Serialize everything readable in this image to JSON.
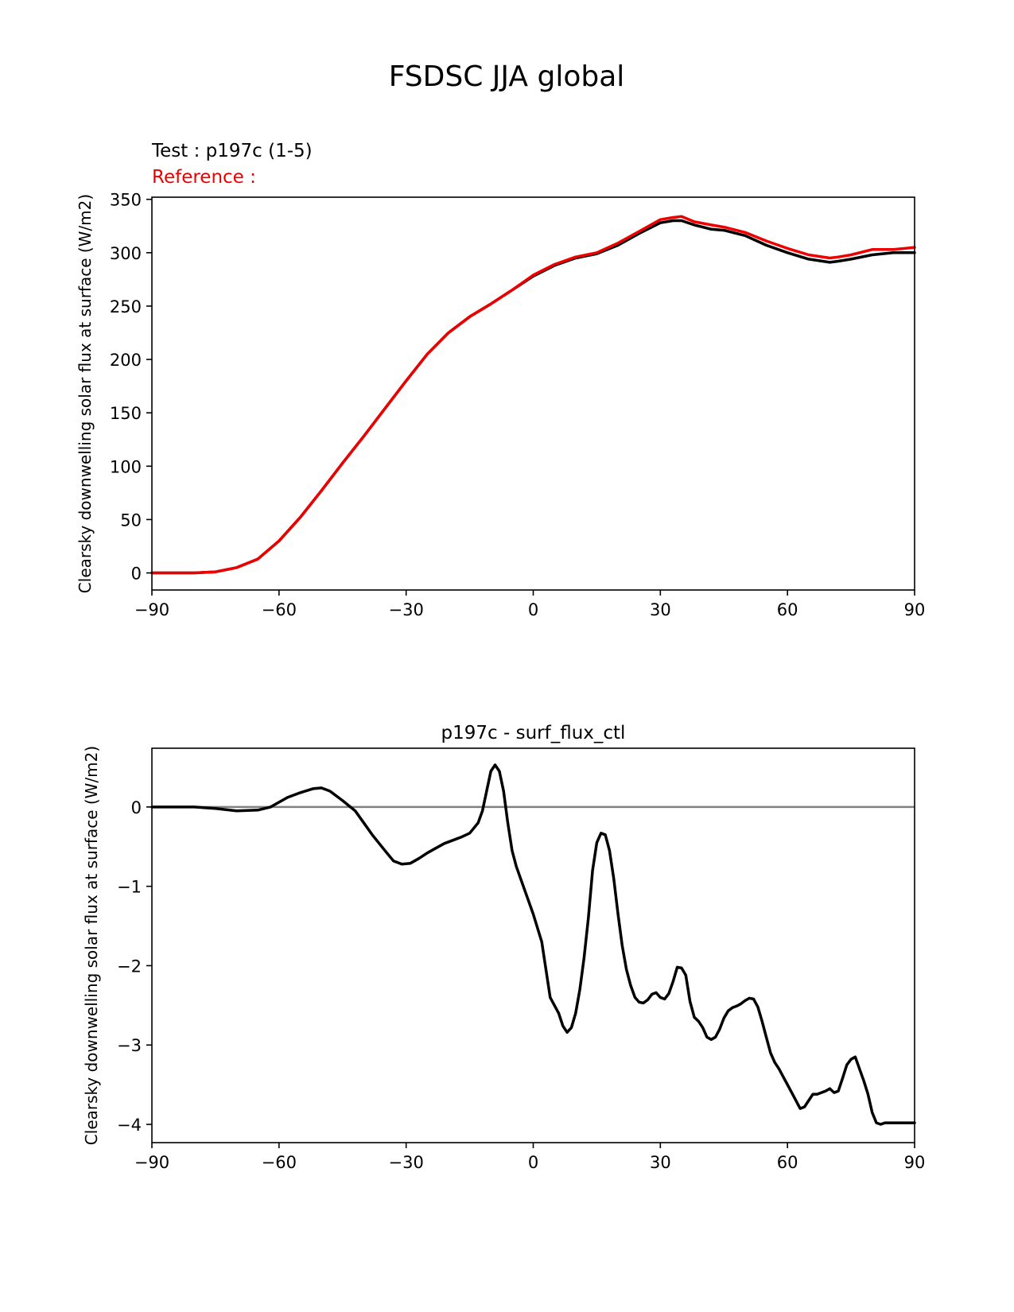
{
  "figure": {
    "suptitle": "FSDSC JJA global",
    "test_label": "Test : p197c (1-5)",
    "reference_label": "Reference :",
    "colors": {
      "test": "#000000",
      "reference": "#ee0000",
      "zero_line": "#808080"
    }
  },
  "chart_data": [
    {
      "type": "line",
      "title": "",
      "xlabel": "",
      "ylabel": "Clearsky downwelling solar flux at surface (W/m2)",
      "xlim": [
        -90,
        90
      ],
      "ylim": [
        -16,
        352
      ],
      "xticks": [
        -90,
        -60,
        -30,
        0,
        30,
        60,
        90
      ],
      "xtick_labels": [
        "−90",
        "−60",
        "−30",
        "0",
        "30",
        "60",
        "90"
      ],
      "yticks": [
        0,
        50,
        100,
        150,
        200,
        250,
        300,
        350
      ],
      "ytick_labels": [
        "0",
        "50",
        "100",
        "150",
        "200",
        "250",
        "300",
        "350"
      ],
      "series": [
        {
          "name": "Test : p197c (1-5)",
          "color": "#000000",
          "x": [
            -90,
            -85,
            -80,
            -75,
            -70,
            -65,
            -60,
            -55,
            -50,
            -45,
            -40,
            -35,
            -30,
            -25,
            -20,
            -15,
            -10,
            -5,
            0,
            5,
            10,
            15,
            20,
            25,
            30,
            33,
            35,
            38,
            42,
            45,
            50,
            55,
            60,
            65,
            70,
            72,
            75,
            80,
            85,
            90
          ],
          "y": [
            0,
            0,
            0,
            1,
            5,
            13,
            30,
            52,
            77,
            103,
            128,
            154,
            180,
            205,
            225,
            240,
            252,
            265,
            278,
            288,
            295,
            299,
            307,
            318,
            328,
            330,
            330,
            326,
            322,
            321,
            316,
            307,
            300,
            294,
            291,
            292,
            294,
            298,
            300,
            300
          ]
        },
        {
          "name": "Reference :",
          "color": "#ee0000",
          "x": [
            -90,
            -85,
            -80,
            -75,
            -70,
            -65,
            -60,
            -55,
            -50,
            -45,
            -40,
            -35,
            -30,
            -25,
            -20,
            -15,
            -10,
            -5,
            0,
            5,
            10,
            15,
            20,
            25,
            30,
            33,
            35,
            38,
            42,
            45,
            50,
            55,
            60,
            65,
            70,
            72,
            75,
            80,
            85,
            90
          ],
          "y": [
            0,
            0,
            0,
            1,
            5,
            13,
            30,
            52,
            77,
            103,
            128,
            154,
            180,
            205,
            225,
            240,
            252,
            265,
            279,
            289,
            296,
            300,
            309,
            320,
            331,
            333,
            334,
            329,
            326,
            324,
            319,
            311,
            304,
            298,
            295,
            296,
            298,
            303,
            303,
            305
          ]
        }
      ]
    },
    {
      "type": "line",
      "title": "p197c - surf_flux_ctl",
      "xlabel": "",
      "ylabel": "Clearsky downwelling solar flux at surface (W/m2)",
      "xlim": [
        -90,
        90
      ],
      "ylim": [
        -4.23,
        0.74
      ],
      "xticks": [
        -90,
        -60,
        -30,
        0,
        30,
        60,
        90
      ],
      "xtick_labels": [
        "−90",
        "−60",
        "−30",
        "0",
        "30",
        "60",
        "90"
      ],
      "yticks": [
        0,
        -1,
        -2,
        -3,
        -4
      ],
      "ytick_labels": [
        "0",
        "−1",
        "−2",
        "−3",
        "−4"
      ],
      "zero_line": true,
      "series": [
        {
          "name": "",
          "color": "#000000",
          "x": [
            -90,
            -80,
            -75,
            -70,
            -65,
            -62,
            -58,
            -55,
            -52,
            -50,
            -48,
            -45,
            -42,
            -40,
            -38,
            -35,
            -33,
            -31,
            -29,
            -27,
            -25,
            -23,
            -21,
            -19,
            -17,
            -15,
            -13,
            -12,
            -11,
            -10,
            -9,
            -8,
            -7,
            -6,
            -5,
            -4,
            -2,
            0,
            2,
            4,
            6,
            7,
            8,
            9,
            10,
            11,
            12,
            13,
            14,
            15,
            16,
            17,
            18,
            19,
            20,
            21,
            22,
            23,
            24,
            25,
            26,
            27,
            28,
            29,
            30,
            31,
            32,
            33,
            34,
            35,
            36,
            37,
            38,
            39,
            40,
            41,
            42,
            43,
            44,
            45,
            46,
            47,
            48,
            49,
            50,
            51,
            52,
            53,
            54,
            55,
            56,
            57,
            58,
            59,
            60,
            61,
            62,
            63,
            64,
            65,
            66,
            67,
            68,
            69,
            70,
            71,
            72,
            73,
            74,
            75,
            76,
            77,
            78,
            79,
            80,
            81,
            82,
            83,
            84,
            85,
            86,
            87,
            88,
            89,
            90
          ],
          "y": [
            0,
            0,
            -0.02,
            -0.05,
            -0.04,
            0,
            0.12,
            0.18,
            0.23,
            0.24,
            0.2,
            0.08,
            -0.05,
            -0.2,
            -0.35,
            -0.55,
            -0.68,
            -0.72,
            -0.71,
            -0.65,
            -0.58,
            -0.52,
            -0.46,
            -0.42,
            -0.38,
            -0.33,
            -0.2,
            -0.05,
            0.2,
            0.45,
            0.53,
            0.45,
            0.2,
            -0.2,
            -0.55,
            -0.75,
            -1.05,
            -1.35,
            -1.7,
            -2.4,
            -2.6,
            -2.76,
            -2.84,
            -2.78,
            -2.6,
            -2.3,
            -1.9,
            -1.4,
            -0.8,
            -0.45,
            -0.33,
            -0.35,
            -0.55,
            -0.9,
            -1.35,
            -1.75,
            -2.05,
            -2.25,
            -2.4,
            -2.46,
            -2.47,
            -2.43,
            -2.36,
            -2.34,
            -2.4,
            -2.42,
            -2.35,
            -2.2,
            -2.02,
            -2.03,
            -2.12,
            -2.45,
            -2.65,
            -2.7,
            -2.78,
            -2.9,
            -2.93,
            -2.9,
            -2.8,
            -2.66,
            -2.57,
            -2.53,
            -2.51,
            -2.48,
            -2.44,
            -2.41,
            -2.42,
            -2.52,
            -2.7,
            -2.9,
            -3.1,
            -3.22,
            -3.3,
            -3.4,
            -3.5,
            -3.6,
            -3.7,
            -3.8,
            -3.78,
            -3.7,
            -3.62,
            -3.62,
            -3.6,
            -3.58,
            -3.55,
            -3.6,
            -3.58,
            -3.42,
            -3.25,
            -3.18,
            -3.15,
            -3.3,
            -3.45,
            -3.62,
            -3.85,
            -3.98,
            -4.0,
            -3.98,
            -3.98,
            -3.98,
            -3.98,
            -3.98,
            -3.98,
            -3.98,
            -3.98
          ]
        }
      ]
    }
  ]
}
